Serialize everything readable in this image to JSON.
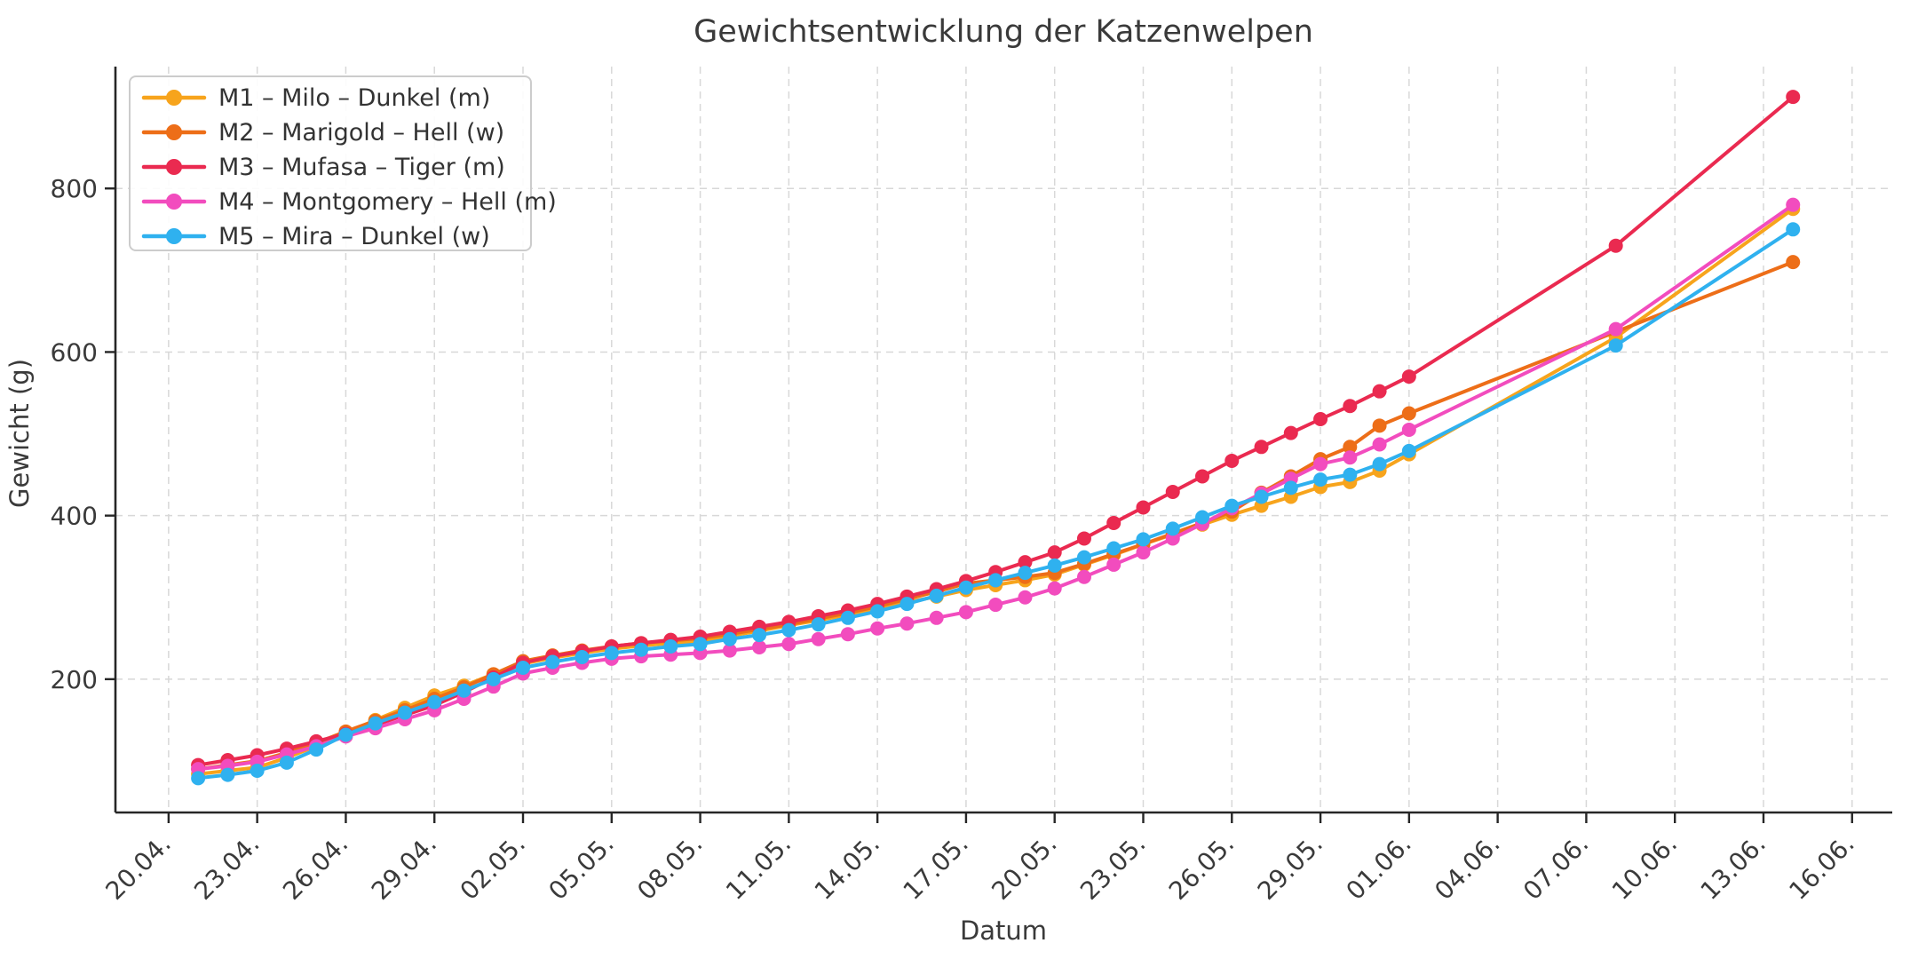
{
  "figure": {
    "title": "Gewichtsentwicklung der Katzenwelpen",
    "xlabel": "Datum",
    "ylabel": "Gewicht (g)"
  },
  "chart_data": {
    "type": "line",
    "title": "Gewichtsentwicklung der Katzenwelpen",
    "xlabel": "Datum",
    "ylabel": "Gewicht (g)",
    "grid": true,
    "grid_style": "dashed",
    "legend_position": "upper left",
    "axis_color": "#262626",
    "text_color": "#3a3a3a",
    "grid_color": "#d8d8d8",
    "yticks": [
      200,
      400,
      600,
      800
    ],
    "ylim": [
      37,
      949
    ],
    "xlim_days": [
      -1.8,
      58.36
    ],
    "x_tick_days": [
      0,
      3,
      6,
      9,
      12,
      15,
      18,
      21,
      24,
      27,
      30,
      33,
      36,
      39,
      42,
      45,
      48,
      51,
      54,
      57
    ],
    "x_tick_labels": [
      "20.04.",
      "23.04.",
      "26.04.",
      "29.04.",
      "02.05.",
      "05.05.",
      "08.05.",
      "11.05.",
      "14.05.",
      "17.05.",
      "20.05.",
      "23.05.",
      "26.05.",
      "29.05.",
      "01.06.",
      "04.06.",
      "07.06.",
      "10.06.",
      "13.06.",
      "16.06."
    ],
    "x_dates": [
      "21.04.",
      "22.04.",
      "23.04.",
      "24.04.",
      "25.04.",
      "26.04.",
      "27.04.",
      "28.04.",
      "29.04.",
      "30.04.",
      "01.05.",
      "02.05.",
      "03.05.",
      "04.05.",
      "05.05.",
      "06.05.",
      "07.05.",
      "08.05.",
      "09.05.",
      "10.05.",
      "11.05.",
      "12.05.",
      "13.05.",
      "14.05.",
      "15.05.",
      "16.05.",
      "17.05.",
      "18.05.",
      "19.05.",
      "20.05.",
      "21.05.",
      "22.05.",
      "23.05.",
      "24.05.",
      "25.05.",
      "26.05.",
      "27.05.",
      "28.05.",
      "29.05.",
      "30.05.",
      "31.05.",
      "01.06.",
      "08.06.",
      "14.06."
    ],
    "x_days": [
      1,
      2,
      3,
      4,
      5,
      6,
      7,
      8,
      9,
      10,
      11,
      12,
      13,
      14,
      15,
      16,
      17,
      18,
      19,
      20,
      21,
      22,
      23,
      24,
      25,
      26,
      27,
      28,
      29,
      30,
      31,
      32,
      33,
      34,
      35,
      36,
      37,
      38,
      39,
      40,
      41,
      42,
      49,
      55
    ],
    "series": [
      {
        "name": "M1 – Milo – Dunkel (m)",
        "color": "#F7A41C",
        "values": [
          84,
          88,
          92,
          104,
          118,
          134,
          150,
          165,
          180,
          192,
          206,
          219,
          226,
          232,
          237,
          241,
          244,
          247,
          253,
          259,
          266,
          272,
          279,
          286,
          294,
          301,
          309,
          315,
          321,
          328,
          340,
          352,
          365,
          377,
          389,
          401,
          412,
          423,
          435,
          441,
          455,
          475,
          618,
          775
        ]
      },
      {
        "name": "M2 – Marigold – Hell (w)",
        "color": "#ED6E18",
        "values": [
          90,
          95,
          100,
          110,
          122,
          136,
          149,
          162,
          176,
          190,
          206,
          222,
          229,
          235,
          240,
          244,
          247,
          250,
          255,
          261,
          267,
          274,
          281,
          289,
          298,
          307,
          317,
          321,
          325,
          330,
          341,
          353,
          365,
          378,
          391,
          405,
          428,
          448,
          469,
          484,
          510,
          525,
          null,
          710
        ]
      },
      {
        "name": "M3 – Mufasa – Tiger (m)",
        "color": "#EA2A50",
        "values": [
          95,
          101,
          107,
          115,
          124,
          133,
          144,
          156,
          168,
          184,
          202,
          220,
          228,
          234,
          240,
          244,
          248,
          252,
          258,
          264,
          270,
          277,
          284,
          292,
          301,
          310,
          320,
          331,
          343,
          355,
          372,
          391,
          410,
          429,
          448,
          467,
          484,
          501,
          518,
          534,
          552,
          570,
          730,
          912
        ]
      },
      {
        "name": "M4 – Montgomery – Hell (m)",
        "color": "#F24CBE",
        "values": [
          90,
          94,
          99,
          108,
          118,
          130,
          140,
          151,
          162,
          176,
          191,
          207,
          214,
          220,
          225,
          228,
          230,
          232,
          235,
          239,
          243,
          249,
          255,
          262,
          268,
          275,
          282,
          291,
          300,
          311,
          325,
          340,
          355,
          372,
          390,
          409,
          427,
          445,
          463,
          471,
          487,
          505,
          628,
          780
        ]
      },
      {
        "name": "M5 – Mira – Dunkel (w)",
        "color": "#2FB1EF",
        "values": [
          79,
          83,
          88,
          98,
          114,
          132,
          146,
          159,
          172,
          186,
          200,
          214,
          221,
          227,
          232,
          236,
          240,
          243,
          249,
          254,
          260,
          267,
          275,
          283,
          292,
          302,
          312,
          321,
          330,
          339,
          349,
          360,
          371,
          384,
          398,
          412,
          423,
          434,
          444,
          450,
          463,
          479,
          608,
          750
        ]
      }
    ]
  }
}
